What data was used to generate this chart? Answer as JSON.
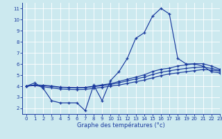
{
  "title": "Graphe des températures (°c)",
  "xlim": [
    -0.5,
    23
  ],
  "ylim": [
    1.5,
    11.5
  ],
  "xticks": [
    0,
    1,
    2,
    3,
    4,
    5,
    6,
    7,
    8,
    9,
    10,
    11,
    12,
    13,
    14,
    15,
    16,
    17,
    18,
    19,
    20,
    21,
    22,
    23
  ],
  "yticks": [
    2,
    3,
    4,
    5,
    6,
    7,
    8,
    9,
    10,
    11
  ],
  "background_color": "#cce9ef",
  "line_color": "#1a3a9e",
  "grid_color": "#ffffff",
  "line1_x": [
    0,
    1,
    2,
    3,
    4,
    5,
    6,
    7,
    8,
    9,
    10,
    11,
    12,
    13,
    14,
    15,
    16,
    17,
    18,
    19,
    20,
    21,
    22,
    23
  ],
  "line1_y": [
    4.0,
    4.3,
    3.8,
    2.7,
    2.5,
    2.5,
    2.5,
    1.8,
    4.1,
    2.7,
    4.5,
    5.3,
    6.5,
    8.3,
    8.8,
    10.3,
    11.0,
    10.5,
    6.5,
    6.0,
    6.0,
    5.8,
    5.3,
    5.2
  ],
  "line2_x": [
    0,
    1,
    2,
    3,
    4,
    5,
    6,
    7,
    8,
    9,
    10,
    11,
    12,
    13,
    14,
    15,
    16,
    17,
    18,
    19,
    20,
    21,
    22,
    23
  ],
  "line2_y": [
    4.0,
    4.05,
    3.95,
    3.85,
    3.75,
    3.72,
    3.7,
    3.72,
    3.8,
    3.9,
    4.0,
    4.1,
    4.25,
    4.4,
    4.55,
    4.75,
    4.95,
    5.1,
    5.2,
    5.3,
    5.4,
    5.5,
    5.45,
    5.35
  ],
  "line3_x": [
    0,
    1,
    2,
    3,
    4,
    5,
    6,
    7,
    8,
    9,
    10,
    11,
    12,
    13,
    14,
    15,
    16,
    17,
    18,
    19,
    20,
    21,
    22,
    23
  ],
  "line3_y": [
    4.0,
    4.1,
    4.05,
    3.98,
    3.9,
    3.88,
    3.85,
    3.88,
    3.95,
    4.05,
    4.15,
    4.3,
    4.48,
    4.65,
    4.82,
    5.05,
    5.25,
    5.38,
    5.5,
    5.6,
    5.68,
    5.72,
    5.6,
    5.42
  ],
  "line4_x": [
    0,
    1,
    2,
    3,
    4,
    5,
    6,
    7,
    8,
    9,
    10,
    11,
    12,
    13,
    14,
    15,
    16,
    17,
    18,
    19,
    20,
    21,
    22,
    23
  ],
  "line4_y": [
    4.0,
    4.12,
    4.08,
    4.02,
    3.92,
    3.9,
    3.87,
    3.9,
    4.0,
    4.12,
    4.22,
    4.42,
    4.62,
    4.82,
    5.02,
    5.32,
    5.52,
    5.62,
    5.82,
    5.92,
    6.02,
    6.02,
    5.82,
    5.52
  ]
}
